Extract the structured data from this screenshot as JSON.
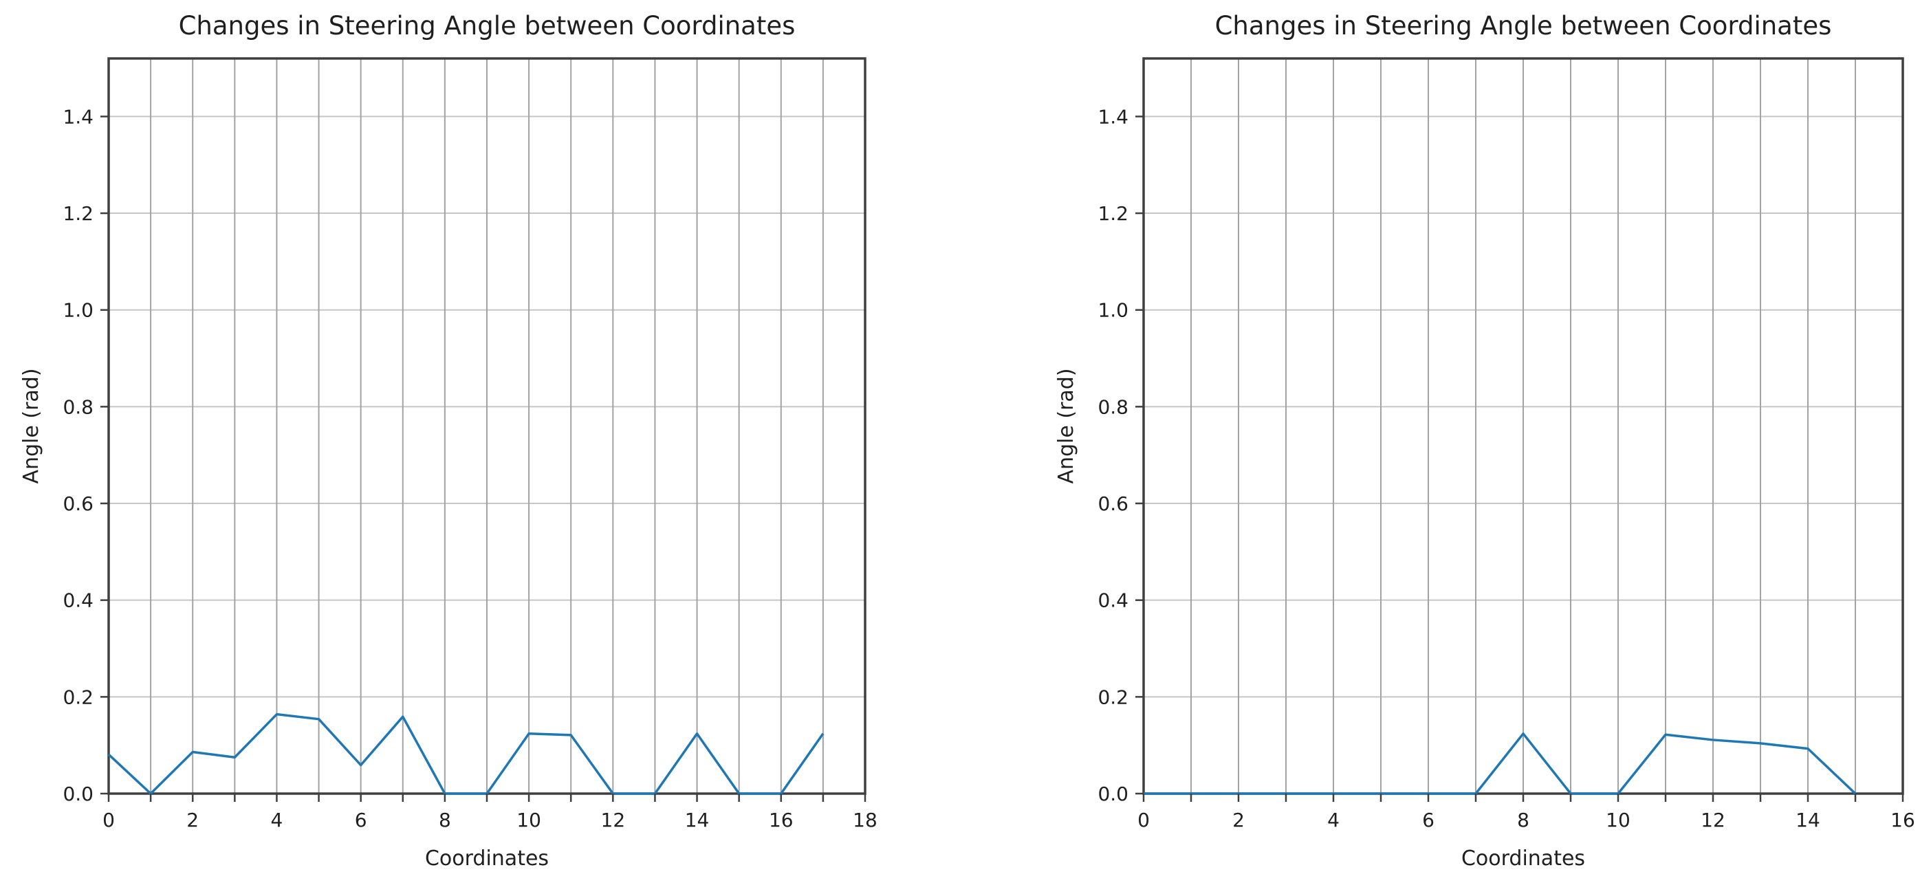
{
  "figure": {
    "background": "#ffffff"
  },
  "colors": {
    "line": "#1f77b4",
    "spine": "#3f3f3f",
    "grid_vertical": "#a3a3a3",
    "grid_horizontal": "#c6c6c6",
    "tick": "#3f3f3f",
    "text": "#1f1f1f"
  },
  "chart_data": [
    {
      "type": "line",
      "title": "Changes in Steering Angle between Coordinates",
      "xlabel": "Coordinates",
      "ylabel": "Angle (rad)",
      "x": [
        0,
        1,
        2,
        3,
        4,
        5,
        6,
        7,
        8,
        9,
        10,
        11,
        12,
        13,
        14,
        15,
        16,
        17
      ],
      "y": [
        0.081,
        0.0,
        0.086,
        0.075,
        0.164,
        0.154,
        0.059,
        0.159,
        0.0,
        0.0,
        0.124,
        0.121,
        0.0,
        0.0,
        0.124,
        0.0,
        0.0,
        0.124
      ],
      "xlim": [
        0,
        18
      ],
      "ylim": [
        0,
        1.52
      ],
      "xtick_labels": [
        "0",
        "2",
        "4",
        "6",
        "8",
        "10",
        "12",
        "14",
        "16",
        "18"
      ],
      "xtick_label_values": [
        0,
        2,
        4,
        6,
        8,
        10,
        12,
        14,
        16,
        18
      ],
      "ytick_labels": [
        "0.0",
        "0.2",
        "0.4",
        "0.6",
        "0.8",
        "1.0",
        "1.2",
        "1.4"
      ],
      "ytick_values": [
        0.0,
        0.2,
        0.4,
        0.6,
        0.8,
        1.0,
        1.2,
        1.4
      ],
      "grid": "on",
      "legend": "none"
    },
    {
      "type": "line",
      "title": "Changes in Steering Angle between Coordinates",
      "xlabel": "Coordinates",
      "ylabel": "Angle (rad)",
      "x": [
        0,
        1,
        2,
        3,
        4,
        5,
        6,
        7,
        8,
        9,
        10,
        11,
        12,
        13,
        14,
        15
      ],
      "y": [
        0.0,
        0.0,
        0.0,
        0.0,
        0.0,
        0.0,
        0.0,
        0.0,
        0.124,
        0.0,
        0.0,
        0.122,
        0.111,
        0.104,
        0.093,
        0.0
      ],
      "xlim": [
        0,
        16
      ],
      "ylim": [
        0,
        1.52
      ],
      "xtick_labels": [
        "0",
        "2",
        "4",
        "6",
        "8",
        "10",
        "12",
        "14",
        "16"
      ],
      "xtick_label_values": [
        0,
        2,
        4,
        6,
        8,
        10,
        12,
        14,
        16
      ],
      "ytick_labels": [
        "0.0",
        "0.2",
        "0.4",
        "0.6",
        "0.8",
        "1.0",
        "1.2",
        "1.4"
      ],
      "ytick_values": [
        0.0,
        0.2,
        0.4,
        0.6,
        0.8,
        1.0,
        1.2,
        1.4
      ],
      "grid": "on",
      "legend": "none"
    }
  ]
}
